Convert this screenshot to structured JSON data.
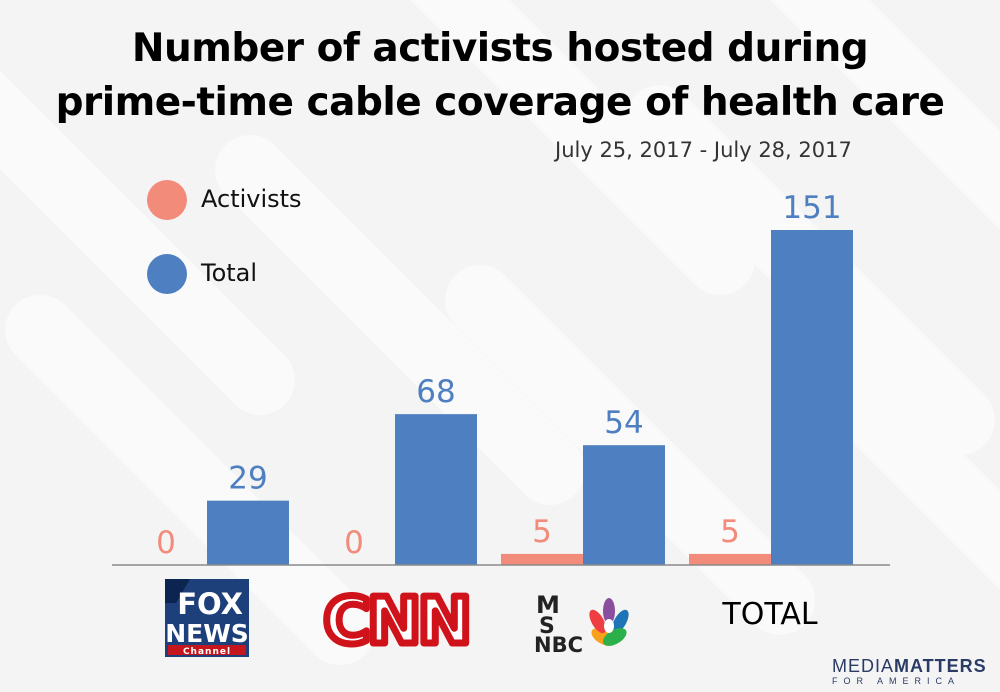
{
  "title_line1": "Number of activists hosted during",
  "title_line2": "prime-time cable coverage of health care",
  "subtitle": "July 25, 2017 - July 28, 2017",
  "legend": [
    {
      "label": "Activists",
      "color": "#f28b7a"
    },
    {
      "label": "Total",
      "color": "#4e7fc0"
    }
  ],
  "logos": {
    "fox_line1": "FOX",
    "fox_line2": "NEWS",
    "fox_line3": "Channel",
    "cnn": "CNN",
    "msnbc_m": "M",
    "msnbc_s": "S",
    "msnbc_nbc": "NBC",
    "total": "TOTAL"
  },
  "brand": {
    "media": "MEDIA",
    "matters": "MATTERS",
    "sub": "FOR AMERICA"
  },
  "chart_data": {
    "type": "bar",
    "categories": [
      "Fox News",
      "CNN",
      "MSNBC",
      "TOTAL"
    ],
    "series": [
      {
        "name": "Activists",
        "values": [
          0,
          0,
          5,
          5
        ],
        "color": "#f28b7a"
      },
      {
        "name": "Total",
        "values": [
          29,
          68,
          54,
          151
        ],
        "color": "#4e7fc0"
      }
    ],
    "ylim": [
      0,
      151
    ],
    "grid": false,
    "legend_position": "top-left",
    "data_labels": true
  }
}
